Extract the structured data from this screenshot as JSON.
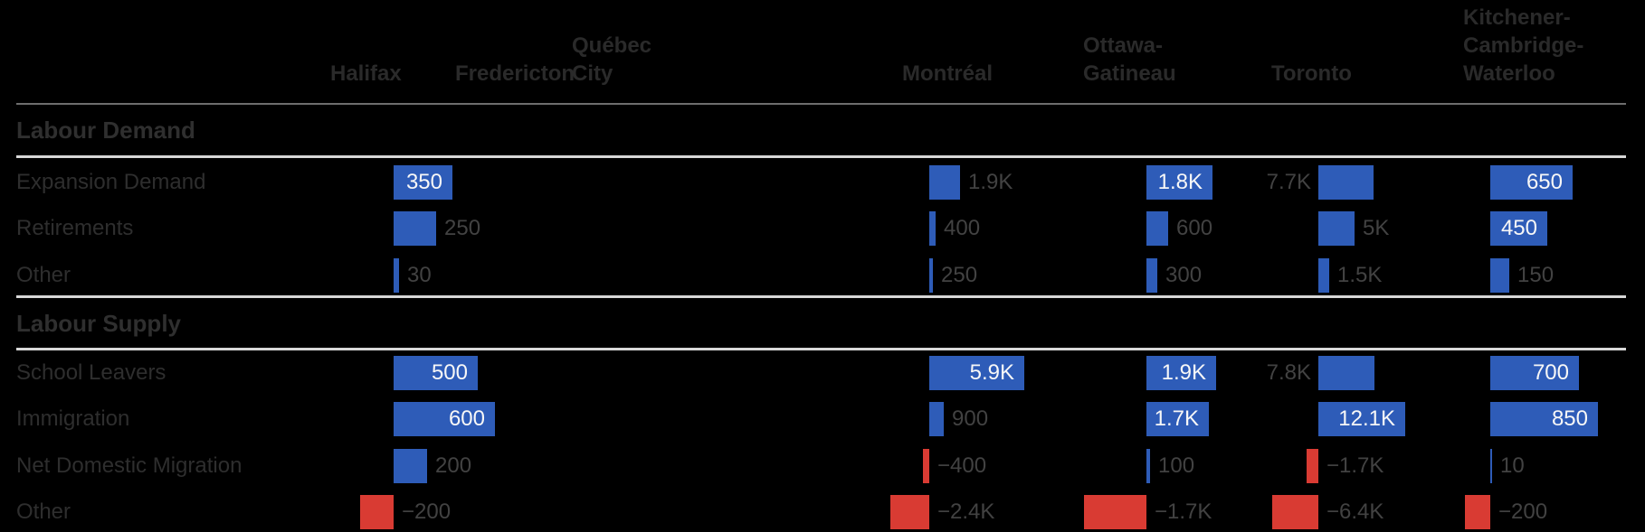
{
  "chart_data": {
    "type": "bar",
    "orientation": "horizontal",
    "title": "",
    "legend": "none",
    "grid": "off",
    "categories": [
      "Halifax",
      "Fredericton",
      "Québec City",
      "Montréal",
      "Ottawa-Gatineau",
      "Toronto",
      "Kitchener-Cambridge-Waterloo"
    ],
    "column_header_lines": [
      [
        "Halifax"
      ],
      [
        "Fredericton"
      ],
      [
        "Québec",
        "City"
      ],
      [
        "Montréal"
      ],
      [
        "Ottawa-",
        "Gatineau"
      ],
      [
        "Toronto"
      ],
      [
        "Kitchener-",
        "Cambridge-",
        "Waterloo"
      ]
    ],
    "colors": {
      "positive_bar": "#2e5cb8",
      "negative_bar": "#d93b33",
      "inside_label": "#f7f7f7",
      "outside_label": "#424242",
      "row_label": "#2e2e2e",
      "section_title": "#2f2f2f",
      "column_header": "#2a2a2a",
      "header_rule": "#6e6e6e",
      "section_rule": "#d8d8d8",
      "background": "#000000"
    },
    "sections": [
      {
        "title": "Labour Demand",
        "rows": [
          {
            "label": "Expansion Demand",
            "cells": [
              {
                "value": 350,
                "display": "350",
                "label_pos": "inside"
              },
              null,
              null,
              {
                "value": 1900,
                "display": "1.9K",
                "label_pos": "out-right"
              },
              {
                "value": 1800,
                "display": "1.8K",
                "label_pos": "inside"
              },
              {
                "value": 7700,
                "display": "7.7K",
                "label_pos": "out-left"
              },
              {
                "value": 650,
                "display": "650",
                "label_pos": "inside"
              }
            ]
          },
          {
            "label": "Retirements",
            "cells": [
              {
                "value": 250,
                "display": "250",
                "label_pos": "out-right"
              },
              null,
              null,
              {
                "value": 400,
                "display": "400",
                "label_pos": "out-right"
              },
              {
                "value": 600,
                "display": "600",
                "label_pos": "out-right"
              },
              {
                "value": 5000,
                "display": "5K",
                "label_pos": "out-right"
              },
              {
                "value": 450,
                "display": "450",
                "label_pos": "inside"
              }
            ]
          },
          {
            "label": "Other",
            "cells": [
              {
                "value": 30,
                "display": "30",
                "label_pos": "out-right"
              },
              null,
              null,
              {
                "value": 250,
                "display": "250",
                "label_pos": "out-right"
              },
              {
                "value": 300,
                "display": "300",
                "label_pos": "out-right"
              },
              {
                "value": 1500,
                "display": "1.5K",
                "label_pos": "out-right"
              },
              {
                "value": 150,
                "display": "150",
                "label_pos": "out-right"
              }
            ]
          }
        ]
      },
      {
        "title": "Labour Supply",
        "rows": [
          {
            "label": "School Leavers",
            "cells": [
              {
                "value": 500,
                "display": "500",
                "label_pos": "inside"
              },
              null,
              null,
              {
                "value": 5900,
                "display": "5.9K",
                "label_pos": "inside"
              },
              {
                "value": 1900,
                "display": "1.9K",
                "label_pos": "inside"
              },
              {
                "value": 7800,
                "display": "7.8K",
                "label_pos": "out-left"
              },
              {
                "value": 700,
                "display": "700",
                "label_pos": "inside"
              }
            ]
          },
          {
            "label": "Immigration",
            "cells": [
              {
                "value": 600,
                "display": "600",
                "label_pos": "inside"
              },
              null,
              null,
              {
                "value": 900,
                "display": "900",
                "label_pos": "out-right"
              },
              {
                "value": 1700,
                "display": "1.7K",
                "label_pos": "inside"
              },
              {
                "value": 12100,
                "display": "12.1K",
                "label_pos": "inside"
              },
              {
                "value": 850,
                "display": "850",
                "label_pos": "inside"
              }
            ]
          },
          {
            "label": "Net Domestic Migration",
            "cells": [
              {
                "value": 200,
                "display": "200",
                "label_pos": "out-right"
              },
              null,
              null,
              {
                "value": -400,
                "display": "−400",
                "label_pos": "out-right"
              },
              {
                "value": 100,
                "display": "100",
                "label_pos": "out-right"
              },
              {
                "value": -1700,
                "display": "−1.7K",
                "label_pos": "out-right"
              },
              {
                "value": 10,
                "display": "10",
                "label_pos": "out-right"
              }
            ]
          },
          {
            "label": "Other",
            "cells": [
              {
                "value": -200,
                "display": "−200",
                "label_pos": "out-right"
              },
              null,
              null,
              {
                "value": -2400,
                "display": "−2.4K",
                "label_pos": "out-right"
              },
              {
                "value": -1700,
                "display": "−1.7K",
                "label_pos": "out-right"
              },
              {
                "value": -6400,
                "display": "−6.4K",
                "label_pos": "out-right"
              },
              {
                "value": -200,
                "display": "−200",
                "label_pos": "out-right"
              }
            ]
          }
        ]
      }
    ]
  }
}
